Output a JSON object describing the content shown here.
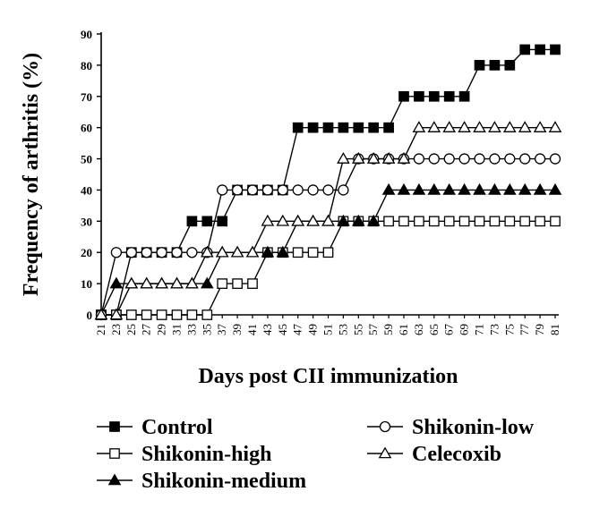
{
  "chart_data": {
    "type": "line",
    "xlabel": "Days post CII immunization",
    "ylabel": "Frequency of arthritis (%)",
    "ylim": [
      0,
      90
    ],
    "yticks": [
      0,
      10,
      20,
      30,
      40,
      50,
      60,
      70,
      80,
      90
    ],
    "xlim": [
      21,
      81
    ],
    "xticks": [
      21,
      23,
      25,
      27,
      29,
      31,
      33,
      35,
      37,
      39,
      41,
      43,
      45,
      47,
      49,
      51,
      53,
      55,
      57,
      59,
      61,
      63,
      65,
      67,
      69,
      71,
      73,
      75,
      77,
      79,
      81
    ],
    "grid": false,
    "legend_position": "bottom",
    "series": [
      {
        "name": "Control",
        "marker": "filled-square",
        "color": "#000000",
        "points": [
          [
            21,
            0
          ],
          [
            23,
            0
          ],
          [
            25,
            20
          ],
          [
            27,
            20
          ],
          [
            29,
            20
          ],
          [
            31,
            20
          ],
          [
            33,
            30
          ],
          [
            35,
            30
          ],
          [
            37,
            30
          ],
          [
            39,
            40
          ],
          [
            41,
            40
          ],
          [
            43,
            40
          ],
          [
            45,
            40
          ],
          [
            47,
            60
          ],
          [
            49,
            60
          ],
          [
            51,
            60
          ],
          [
            53,
            60
          ],
          [
            55,
            60
          ],
          [
            57,
            60
          ],
          [
            59,
            60
          ],
          [
            61,
            70
          ],
          [
            63,
            70
          ],
          [
            65,
            70
          ],
          [
            67,
            70
          ],
          [
            69,
            70
          ],
          [
            71,
            80
          ],
          [
            73,
            80
          ],
          [
            75,
            80
          ],
          [
            77,
            85
          ],
          [
            79,
            85
          ],
          [
            81,
            85
          ]
        ]
      },
      {
        "name": "Shikonin-high",
        "marker": "open-square",
        "color": "#000000",
        "points": [
          [
            21,
            0
          ],
          [
            23,
            0
          ],
          [
            25,
            0
          ],
          [
            27,
            0
          ],
          [
            29,
            0
          ],
          [
            31,
            0
          ],
          [
            33,
            0
          ],
          [
            35,
            0
          ],
          [
            37,
            10
          ],
          [
            39,
            10
          ],
          [
            41,
            10
          ],
          [
            43,
            20
          ],
          [
            45,
            20
          ],
          [
            47,
            20
          ],
          [
            49,
            20
          ],
          [
            51,
            20
          ],
          [
            53,
            30
          ],
          [
            55,
            30
          ],
          [
            57,
            30
          ],
          [
            59,
            30
          ],
          [
            61,
            30
          ],
          [
            63,
            30
          ],
          [
            65,
            30
          ],
          [
            67,
            30
          ],
          [
            69,
            30
          ],
          [
            71,
            30
          ],
          [
            73,
            30
          ],
          [
            75,
            30
          ],
          [
            77,
            30
          ],
          [
            79,
            30
          ],
          [
            81,
            30
          ]
        ]
      },
      {
        "name": "Shikonin-medium",
        "marker": "filled-triangle",
        "color": "#000000",
        "points": [
          [
            21,
            0
          ],
          [
            23,
            10
          ],
          [
            25,
            10
          ],
          [
            27,
            10
          ],
          [
            29,
            10
          ],
          [
            31,
            10
          ],
          [
            33,
            10
          ],
          [
            35,
            10
          ],
          [
            37,
            20
          ],
          [
            39,
            20
          ],
          [
            41,
            20
          ],
          [
            43,
            20
          ],
          [
            45,
            20
          ],
          [
            47,
            30
          ],
          [
            49,
            30
          ],
          [
            51,
            30
          ],
          [
            53,
            30
          ],
          [
            55,
            30
          ],
          [
            57,
            30
          ],
          [
            59,
            40
          ],
          [
            61,
            40
          ],
          [
            63,
            40
          ],
          [
            65,
            40
          ],
          [
            67,
            40
          ],
          [
            69,
            40
          ],
          [
            71,
            40
          ],
          [
            73,
            40
          ],
          [
            75,
            40
          ],
          [
            77,
            40
          ],
          [
            79,
            40
          ],
          [
            81,
            40
          ]
        ]
      },
      {
        "name": "Shikonin-low",
        "marker": "open-circle",
        "color": "#000000",
        "points": [
          [
            21,
            0
          ],
          [
            23,
            20
          ],
          [
            25,
            20
          ],
          [
            27,
            20
          ],
          [
            29,
            20
          ],
          [
            31,
            20
          ],
          [
            33,
            20
          ],
          [
            35,
            20
          ],
          [
            37,
            40
          ],
          [
            39,
            40
          ],
          [
            41,
            40
          ],
          [
            43,
            40
          ],
          [
            45,
            40
          ],
          [
            47,
            40
          ],
          [
            49,
            40
          ],
          [
            51,
            40
          ],
          [
            53,
            40
          ],
          [
            55,
            50
          ],
          [
            57,
            50
          ],
          [
            59,
            50
          ],
          [
            61,
            50
          ],
          [
            63,
            50
          ],
          [
            65,
            50
          ],
          [
            67,
            50
          ],
          [
            69,
            50
          ],
          [
            71,
            50
          ],
          [
            73,
            50
          ],
          [
            75,
            50
          ],
          [
            77,
            50
          ],
          [
            79,
            50
          ],
          [
            81,
            50
          ]
        ]
      },
      {
        "name": "Celecoxib",
        "marker": "open-triangle",
        "color": "#000000",
        "points": [
          [
            21,
            0
          ],
          [
            23,
            0
          ],
          [
            25,
            10
          ],
          [
            27,
            10
          ],
          [
            29,
            10
          ],
          [
            31,
            10
          ],
          [
            33,
            10
          ],
          [
            35,
            20
          ],
          [
            37,
            20
          ],
          [
            39,
            20
          ],
          [
            41,
            20
          ],
          [
            43,
            30
          ],
          [
            45,
            30
          ],
          [
            47,
            30
          ],
          [
            49,
            30
          ],
          [
            51,
            30
          ],
          [
            53,
            50
          ],
          [
            55,
            50
          ],
          [
            57,
            50
          ],
          [
            59,
            50
          ],
          [
            61,
            50
          ],
          [
            63,
            60
          ],
          [
            65,
            60
          ],
          [
            67,
            60
          ],
          [
            69,
            60
          ],
          [
            71,
            60
          ],
          [
            73,
            60
          ],
          [
            75,
            60
          ],
          [
            77,
            60
          ],
          [
            79,
            60
          ],
          [
            81,
            60
          ]
        ]
      }
    ]
  }
}
